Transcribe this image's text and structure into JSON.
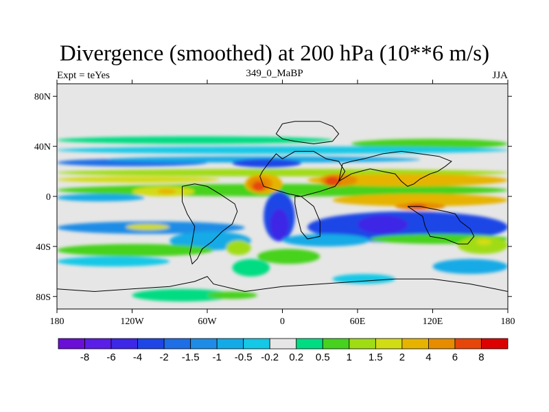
{
  "title": "Divergence (smoothed) at 200 hPa (10**6 m/s)",
  "subtitle_left": "Expt = teYes",
  "subtitle_center": "349_0_MaBP",
  "subtitle_right": "JJA",
  "colors": {
    "background_field": "#e6e6e6",
    "levels": [
      "#6a0fd6",
      "#5a1ee6",
      "#3c28e6",
      "#1e46e6",
      "#1e6ee6",
      "#1e8ce6",
      "#14aae6",
      "#14c8e6",
      "#e6e6e6",
      "#00dc82",
      "#46d21e",
      "#a0dc14",
      "#d2dc14",
      "#e6b400",
      "#e68c00",
      "#e6460a",
      "#dc0000"
    ],
    "coastline": "#000000"
  },
  "chart_data": {
    "type": "heatmap",
    "title": "Divergence (smoothed) at 200 hPa (10**6 m/s)",
    "season": "JJA",
    "experiment": "teYes",
    "xlim": [
      -180,
      180
    ],
    "ylim": [
      -90,
      90
    ],
    "x_ticks": [
      {
        "value": -180,
        "label": "180"
      },
      {
        "value": -120,
        "label": "120W"
      },
      {
        "value": -60,
        "label": "60W"
      },
      {
        "value": 0,
        "label": "0"
      },
      {
        "value": 60,
        "label": "60E"
      },
      {
        "value": 120,
        "label": "120E"
      },
      {
        "value": 180,
        "label": "180"
      }
    ],
    "y_ticks": [
      {
        "value": 80,
        "label": "80N"
      },
      {
        "value": 40,
        "label": "40N"
      },
      {
        "value": 0,
        "label": "0"
      },
      {
        "value": -40,
        "label": "40S"
      },
      {
        "value": -80,
        "label": "80S"
      }
    ],
    "colorbar_labels": [
      "-8",
      "-6",
      "-4",
      "-2",
      "-1.5",
      "-1",
      "-0.5",
      "-0.2",
      "0.2",
      "0.5",
      "1",
      "1.5",
      "2",
      "4",
      "6",
      "8"
    ],
    "regions": [
      {
        "level": 10,
        "lon": -180,
        "lat": 10,
        "w": 360,
        "h": 10
      },
      {
        "level": 12,
        "lon": -180,
        "lat": 16,
        "w": 130,
        "h": 5
      },
      {
        "level": 11,
        "lon": -180,
        "lat": 22,
        "w": 360,
        "h": 6
      },
      {
        "level": 4,
        "lon": -180,
        "lat": 30,
        "w": 120,
        "h": 6
      },
      {
        "level": 6,
        "lon": -140,
        "lat": 32,
        "w": 250,
        "h": 5
      },
      {
        "level": 3,
        "lon": -40,
        "lat": 30,
        "w": 55,
        "h": 7
      },
      {
        "level": 9,
        "lon": -180,
        "lat": 48,
        "w": 220,
        "h": 6
      },
      {
        "level": 10,
        "lon": 55,
        "lat": 46,
        "w": 125,
        "h": 8
      },
      {
        "level": 7,
        "lon": -180,
        "lat": 40,
        "w": 360,
        "h": 6
      },
      {
        "level": 13,
        "lon": -30,
        "lat": 18,
        "w": 30,
        "h": 16
      },
      {
        "level": 14,
        "lon": -28,
        "lat": 16,
        "w": 20,
        "h": 12
      },
      {
        "level": 15,
        "lon": -24,
        "lat": 12,
        "w": 10,
        "h": 8
      },
      {
        "level": 13,
        "lon": 20,
        "lat": 18,
        "w": 160,
        "h": 10
      },
      {
        "level": 14,
        "lon": 30,
        "lat": 18,
        "w": 30,
        "h": 10
      },
      {
        "level": 15,
        "lon": 34,
        "lat": 16,
        "w": 12,
        "h": 8
      },
      {
        "level": 12,
        "lon": -120,
        "lat": 8,
        "w": 50,
        "h": 8
      },
      {
        "level": 13,
        "lon": -100,
        "lat": 6,
        "w": 15,
        "h": 4
      },
      {
        "level": 6,
        "lon": -180,
        "lat": 2,
        "w": 70,
        "h": 6
      },
      {
        "level": 3,
        "lon": -15,
        "lat": 4,
        "w": 25,
        "h": 40
      },
      {
        "level": 2,
        "lon": -10,
        "lat": -10,
        "w": 15,
        "h": 25
      },
      {
        "level": 13,
        "lon": 40,
        "lat": 2,
        "w": 140,
        "h": 10
      },
      {
        "level": 14,
        "lon": 90,
        "lat": -5,
        "w": 40,
        "h": 6
      },
      {
        "level": 15,
        "lon": 100,
        "lat": -6,
        "w": 15,
        "h": 4
      },
      {
        "level": 3,
        "lon": 20,
        "lat": -12,
        "w": 160,
        "h": 25
      },
      {
        "level": 2,
        "lon": 60,
        "lat": -15,
        "w": 40,
        "h": 15
      },
      {
        "level": 5,
        "lon": -180,
        "lat": -20,
        "w": 150,
        "h": 10
      },
      {
        "level": 12,
        "lon": -125,
        "lat": -22,
        "w": 35,
        "h": 5
      },
      {
        "level": 6,
        "lon": -90,
        "lat": -28,
        "w": 65,
        "h": 15
      },
      {
        "level": 10,
        "lon": -180,
        "lat": -38,
        "w": 125,
        "h": 10
      },
      {
        "level": 7,
        "lon": -180,
        "lat": -48,
        "w": 90,
        "h": 8
      },
      {
        "level": 11,
        "lon": -45,
        "lat": -35,
        "w": 20,
        "h": 12
      },
      {
        "level": 9,
        "lon": -40,
        "lat": -50,
        "w": 30,
        "h": 14
      },
      {
        "level": 10,
        "lon": -20,
        "lat": -42,
        "w": 50,
        "h": 12
      },
      {
        "level": 6,
        "lon": 0,
        "lat": -30,
        "w": 70,
        "h": 10
      },
      {
        "level": 10,
        "lon": 70,
        "lat": -30,
        "w": 110,
        "h": 8
      },
      {
        "level": 11,
        "lon": 140,
        "lat": -32,
        "w": 40,
        "h": 14
      },
      {
        "level": 12,
        "lon": 155,
        "lat": -34,
        "w": 12,
        "h": 5
      },
      {
        "level": 7,
        "lon": 40,
        "lat": -62,
        "w": 50,
        "h": 8
      },
      {
        "level": 6,
        "lon": 120,
        "lat": -50,
        "w": 60,
        "h": 12
      },
      {
        "level": 9,
        "lon": -120,
        "lat": -74,
        "w": 80,
        "h": 10
      },
      {
        "level": 10,
        "lon": -60,
        "lat": -76,
        "w": 40,
        "h": 6
      },
      {
        "level": 8,
        "lon": 10,
        "lat": -60,
        "w": 25,
        "h": 6
      }
    ],
    "coastlines": [
      [
        [
          0,
          30
        ],
        [
          10,
          36
        ],
        [
          25,
          36
        ],
        [
          35,
          30
        ],
        [
          45,
          28
        ],
        [
          50,
          20
        ],
        [
          45,
          12
        ],
        [
          42,
          8
        ],
        [
          30,
          4
        ],
        [
          15,
          0
        ],
        [
          5,
          2
        ],
        [
          -5,
          5
        ],
        [
          -15,
          8
        ],
        [
          -18,
          16
        ],
        [
          -16,
          20
        ],
        [
          -10,
          28
        ],
        [
          -5,
          34
        ],
        [
          0,
          30
        ]
      ],
      [
        [
          15,
          0
        ],
        [
          25,
          -8
        ],
        [
          30,
          -20
        ],
        [
          30,
          -32
        ],
        [
          20,
          -34
        ],
        [
          15,
          -28
        ],
        [
          12,
          -16
        ],
        [
          10,
          -6
        ],
        [
          10,
          0
        ],
        [
          15,
          0
        ]
      ],
      [
        [
          0,
          58
        ],
        [
          10,
          60
        ],
        [
          30,
          60
        ],
        [
          40,
          56
        ],
        [
          45,
          50
        ],
        [
          40,
          44
        ],
        [
          25,
          42
        ],
        [
          10,
          44
        ],
        [
          0,
          46
        ],
        [
          -5,
          50
        ],
        [
          0,
          58
        ]
      ],
      [
        [
          45,
          12
        ],
        [
          55,
          18
        ],
        [
          62,
          20
        ],
        [
          70,
          22
        ],
        [
          80,
          20
        ],
        [
          90,
          18
        ],
        [
          95,
          12
        ],
        [
          100,
          8
        ],
        [
          105,
          10
        ],
        [
          110,
          14
        ],
        [
          118,
          18
        ],
        [
          124,
          20
        ],
        [
          130,
          24
        ],
        [
          135,
          28
        ],
        [
          125,
          32
        ],
        [
          110,
          34
        ],
        [
          95,
          36
        ],
        [
          80,
          34
        ],
        [
          65,
          30
        ],
        [
          55,
          28
        ],
        [
          48,
          26
        ],
        [
          45,
          12
        ]
      ],
      [
        [
          100,
          -8
        ],
        [
          110,
          -8
        ],
        [
          120,
          -10
        ],
        [
          130,
          -12
        ],
        [
          138,
          -14
        ],
        [
          142,
          -20
        ],
        [
          150,
          -26
        ],
        [
          153,
          -32
        ],
        [
          148,
          -38
        ],
        [
          140,
          -38
        ],
        [
          130,
          -34
        ],
        [
          118,
          -32
        ],
        [
          114,
          -24
        ],
        [
          112,
          -16
        ],
        [
          100,
          -8
        ]
      ],
      [
        [
          -80,
          8
        ],
        [
          -70,
          10
        ],
        [
          -60,
          8
        ],
        [
          -50,
          2
        ],
        [
          -38,
          -6
        ],
        [
          -36,
          -12
        ],
        [
          -40,
          -22
        ],
        [
          -48,
          -28
        ],
        [
          -56,
          -36
        ],
        [
          -64,
          -42
        ],
        [
          -68,
          -50
        ],
        [
          -72,
          -54
        ],
        [
          -74,
          -46
        ],
        [
          -72,
          -36
        ],
        [
          -70,
          -24
        ],
        [
          -76,
          -14
        ],
        [
          -80,
          -4
        ],
        [
          -80,
          8
        ]
      ],
      [
        [
          -180,
          -74
        ],
        [
          -150,
          -76
        ],
        [
          -120,
          -74
        ],
        [
          -90,
          -72
        ],
        [
          -70,
          -68
        ],
        [
          -60,
          -64
        ],
        [
          -55,
          -70
        ],
        [
          -30,
          -76
        ],
        [
          0,
          -72
        ],
        [
          30,
          -70
        ],
        [
          60,
          -68
        ],
        [
          90,
          -66
        ],
        [
          120,
          -66
        ],
        [
          150,
          -70
        ],
        [
          170,
          -74
        ],
        [
          180,
          -76
        ]
      ]
    ]
  }
}
